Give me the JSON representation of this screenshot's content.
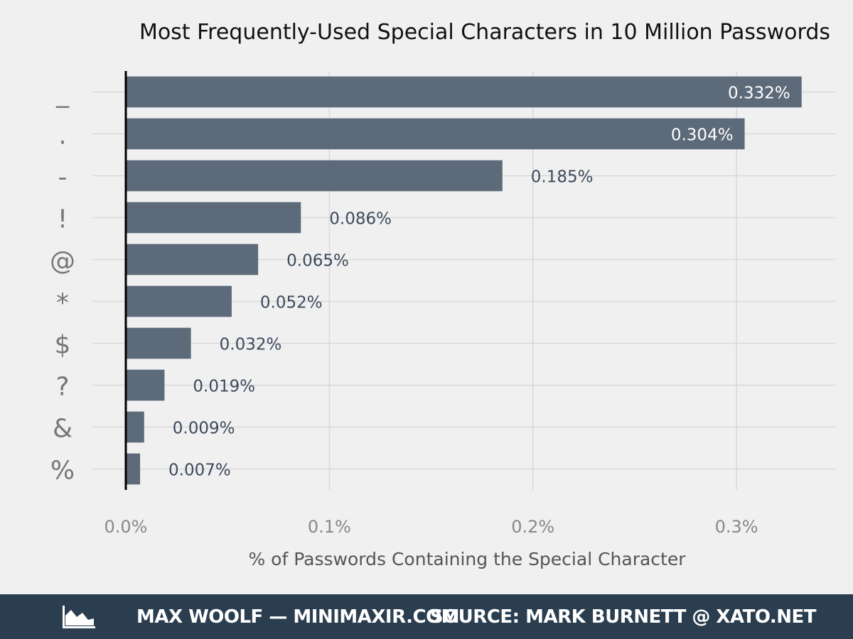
{
  "chart_data": {
    "type": "bar",
    "orientation": "horizontal",
    "title": "Most Frequently-Used Special Characters in 10 Million Passwords",
    "xlabel": "% of Passwords Containing the Special Character",
    "ylabel": "",
    "categories": [
      "_",
      ".",
      "-",
      "!",
      "@",
      "*",
      "$",
      "?",
      "&",
      "%"
    ],
    "values": [
      0.332,
      0.304,
      0.185,
      0.086,
      0.065,
      0.052,
      0.032,
      0.019,
      0.009,
      0.007
    ],
    "data_labels": [
      "0.332%",
      "0.304%",
      "0.185%",
      "0.086%",
      "0.065%",
      "0.052%",
      "0.032%",
      "0.019%",
      "0.009%",
      "0.007%"
    ],
    "x_ticks": [
      0,
      0.1,
      0.2,
      0.3
    ],
    "x_tick_labels": [
      "0.0%",
      "0.1%",
      "0.2%",
      "0.3%"
    ],
    "xlim": [
      0,
      0.3485
    ],
    "grid": true,
    "bar_color": "#5d6a7a",
    "label_color": "#3d4a5c",
    "grid_color": "#d9d9d9"
  },
  "footer": {
    "left_text": "MAX WOOLF — MINIMAXIR.COM",
    "right_text": "SOURCE: MARK BURNETT @ XATO.NET",
    "logo_icon": "area-chart-icon",
    "background": "#2b3e50"
  }
}
